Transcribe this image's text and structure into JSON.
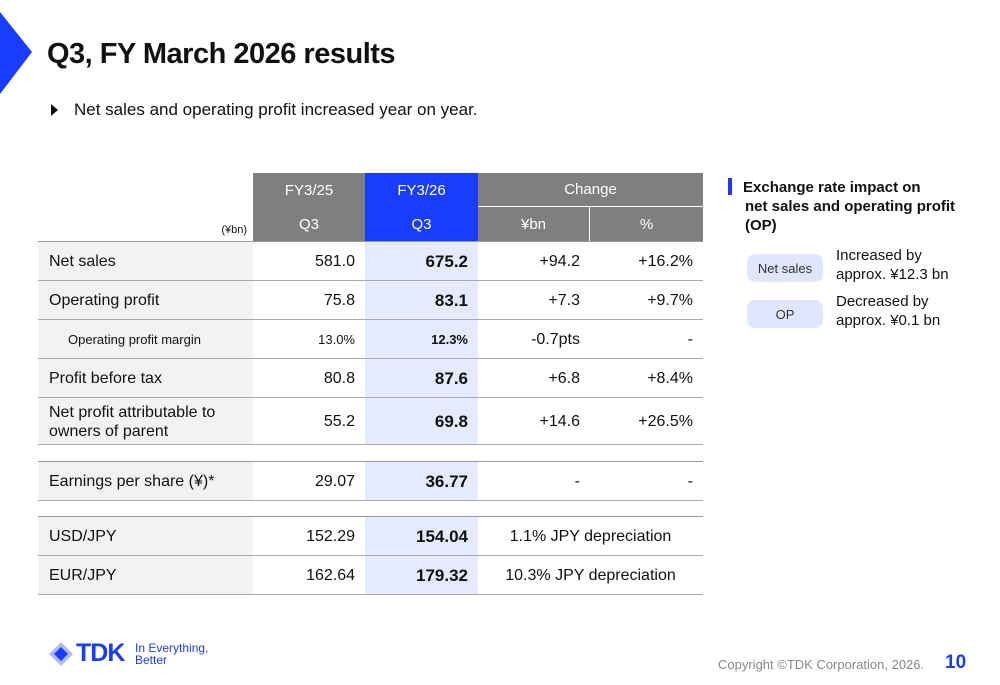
{
  "header": {
    "title": "Q3, FY March 2026 results",
    "bullet": "Net sales and operating profit increased year on year."
  },
  "table": {
    "unit": "(¥bn)",
    "col_groups": [
      "FY3/25",
      "FY3/26",
      "Change"
    ],
    "sub_headers": [
      "Q3",
      "Q3",
      "¥bn",
      "%"
    ],
    "rows": [
      {
        "label": "Net sales",
        "fy25": "581.0",
        "fy26": "675.2",
        "change": "+94.2",
        "pct": "+16.2%"
      },
      {
        "label": "Operating profit",
        "fy25": "75.8",
        "fy26": "83.1",
        "change": "+7.3",
        "pct": "+9.7%"
      },
      {
        "label": "Operating profit margin",
        "fy25": "13.0%",
        "fy26": "12.3%",
        "change": "-0.7pts",
        "pct": "-"
      },
      {
        "label": "Profit before tax",
        "fy25": "80.8",
        "fy26": "87.6",
        "change": "+6.8",
        "pct": "+8.4%"
      },
      {
        "label": "Net profit attributable to owners of parent",
        "fy25": "55.2",
        "fy26": "69.8",
        "change": "+14.6",
        "pct": "+26.5%"
      }
    ],
    "eps_rows": [
      {
        "label": "Earnings per share (¥)*",
        "fy25": "29.07",
        "fy26": "36.77",
        "change": "-",
        "pct": "-"
      }
    ],
    "fx_rows": [
      {
        "label": "USD/JPY",
        "fy25": "152.29",
        "fy26": "154.04",
        "change": "1.1% JPY depreciation"
      },
      {
        "label": "EUR/JPY",
        "fy25": "162.64",
        "fy26": "179.32",
        "change": "10.3% JPY depreciation"
      }
    ]
  },
  "side": {
    "title_lines": [
      "Exchange rate impact on",
      "net sales and operating profit",
      "(OP)"
    ],
    "items": [
      {
        "tag": "Net sales",
        "lines": [
          "Increased by",
          "approx. ¥12.3 bn"
        ]
      },
      {
        "tag": "OP",
        "lines": [
          "Decreased by",
          "approx. ¥0.1 bn"
        ]
      }
    ]
  },
  "footer": {
    "logo": "TDK",
    "tagline_lines": [
      "In Everything,",
      "Better"
    ],
    "copyright": "Copyright ©TDK Corporation, 2026.",
    "page": "10"
  }
}
